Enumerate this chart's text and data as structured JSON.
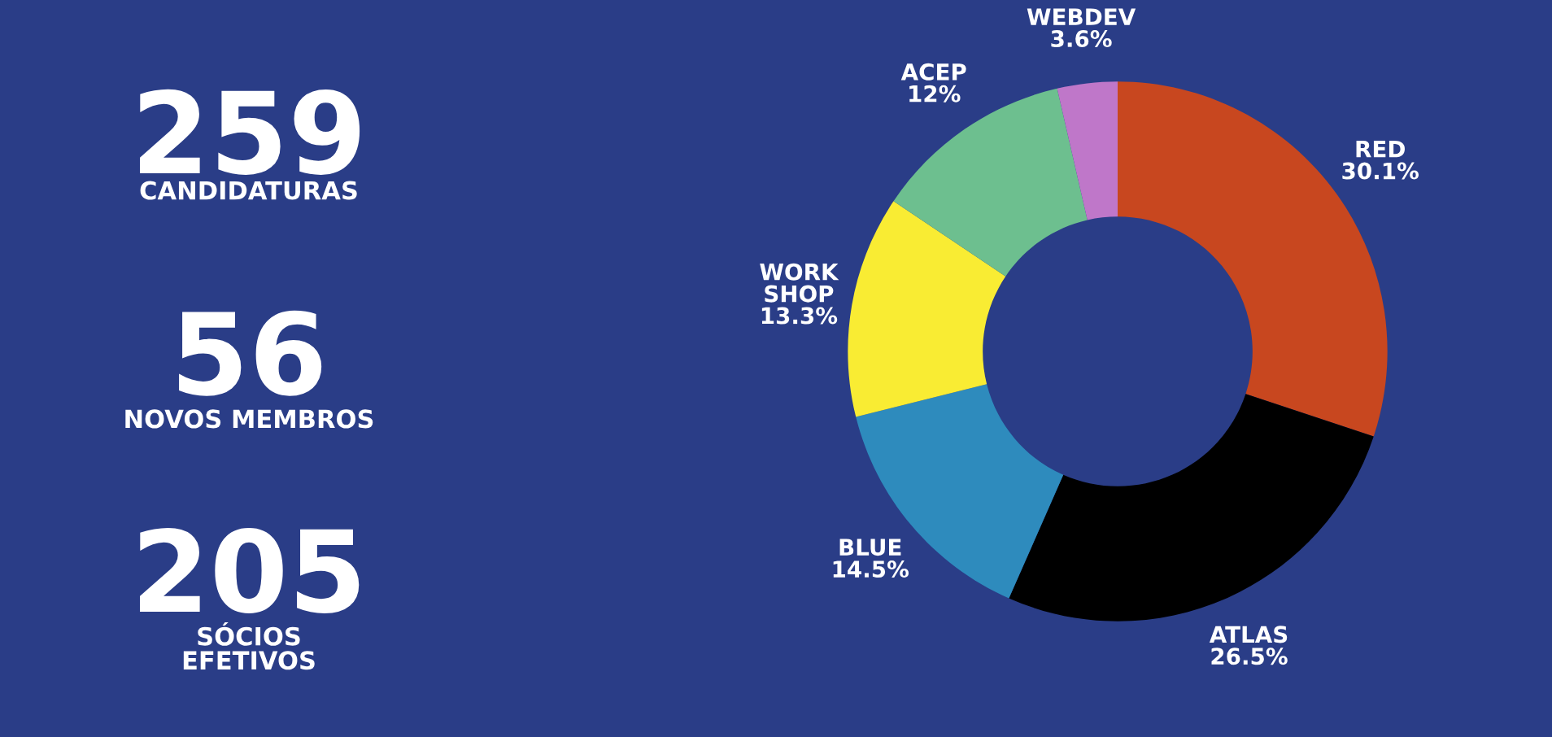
{
  "chart_data": [
    {
      "type": "other",
      "annotations": [
        {
          "text": "259"
        },
        {
          "text": "CANDIDATURAS"
        },
        {
          "text": "56"
        },
        {
          "text": "NOVOS MEMBROS"
        },
        {
          "text": "205"
        },
        {
          "text": "SÓCIOS EFETIVOS"
        }
      ]
    },
    {
      "type": "donut",
      "categories": [
        "RED",
        "ATLAS",
        "BLUE",
        "WORK SHOP",
        "ACEP",
        "WEBDEV"
      ],
      "values": [
        30.1,
        26.5,
        14.5,
        13.3,
        12,
        3.6
      ],
      "colors": [
        "#c8471f",
        "#000000",
        "#2e8bbd",
        "#f9ec33",
        "#6dbf8f",
        "#bf77c9"
      ],
      "value_labels": [
        "30.1%",
        "26.5%",
        "14.5%",
        "13.3%",
        "12%",
        "3.6%"
      ]
    }
  ]
}
